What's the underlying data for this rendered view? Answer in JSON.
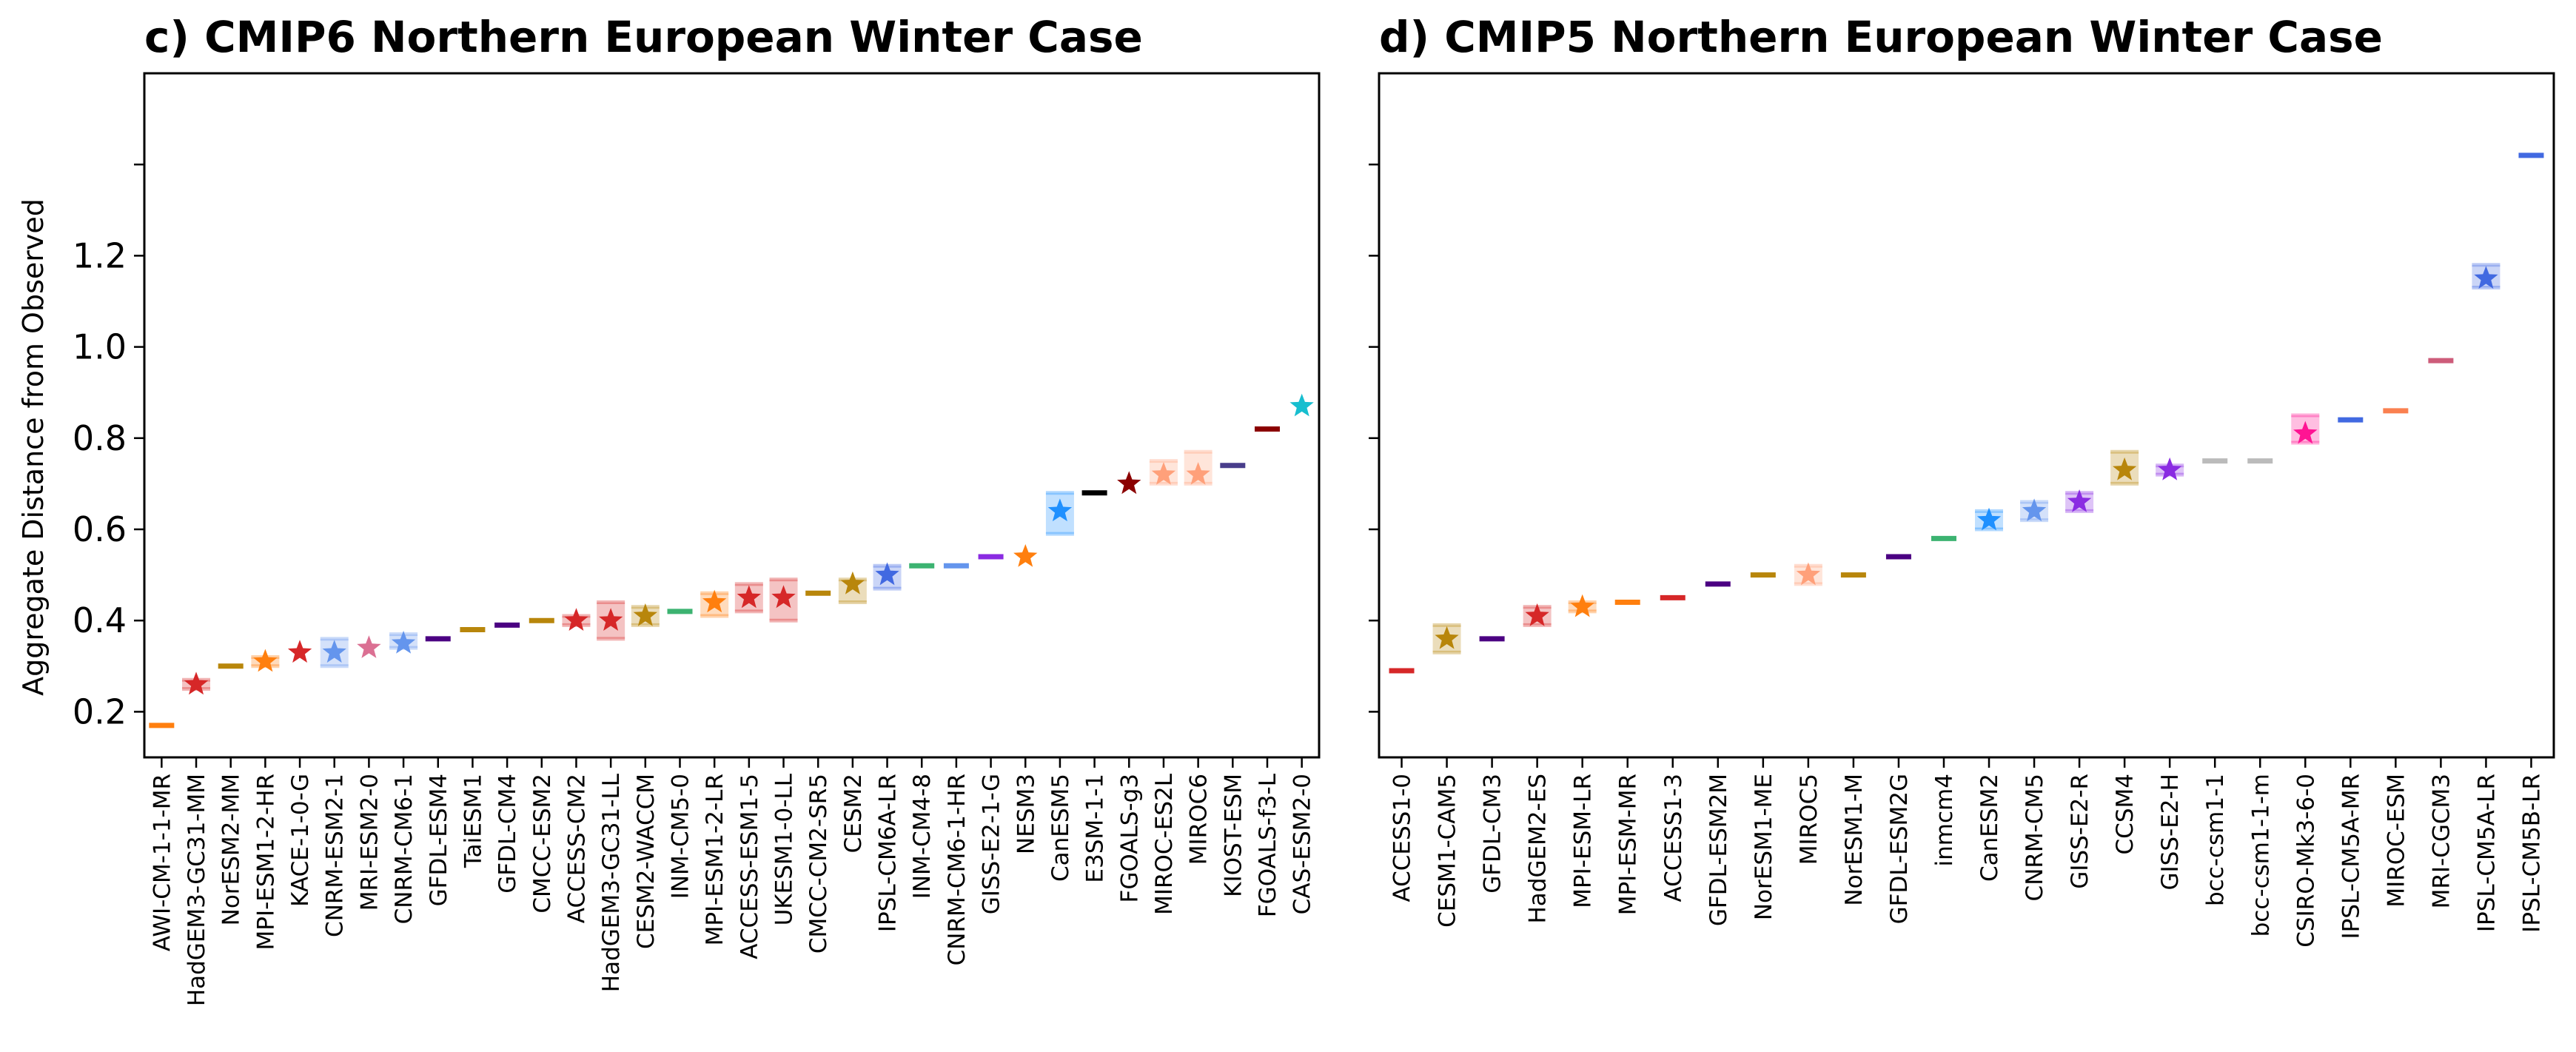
{
  "figure": {
    "ylabel": "Aggregate Distance from Observed",
    "yticks": [
      0.2,
      0.4,
      0.6,
      0.8,
      1.0,
      1.2
    ]
  },
  "chart_data": [
    {
      "type": "scatter",
      "title": "c) CMIP6 Northern European Winter Case",
      "ylabel": "Aggregate Distance from Observed",
      "ylim": [
        0.1,
        1.6
      ],
      "grid": false,
      "models": [
        {
          "name": "AWI-CM-1-1-MR",
          "value": 0.17,
          "color": "#ff7f0e",
          "star": false,
          "spread": []
        },
        {
          "name": "HadGEM3-GC31-MM",
          "value": 0.26,
          "color": "#d62728",
          "star": true,
          "spread": [
            0.25,
            0.27
          ]
        },
        {
          "name": "NorESM2-MM",
          "value": 0.3,
          "color": "#b8860b",
          "star": false,
          "spread": []
        },
        {
          "name": "MPI-ESM1-2-HR",
          "value": 0.31,
          "color": "#ff7f0e",
          "star": true,
          "spread": [
            0.3,
            0.32
          ]
        },
        {
          "name": "KACE-1-0-G",
          "value": 0.33,
          "color": "#d62728",
          "star": true,
          "spread": []
        },
        {
          "name": "CNRM-ESM2-1",
          "value": 0.33,
          "color": "#6495ed",
          "star": true,
          "spread": [
            0.3,
            0.36
          ]
        },
        {
          "name": "MRI-ESM2-0",
          "value": 0.34,
          "color": "#db7093",
          "star": true,
          "spread": []
        },
        {
          "name": "CNRM-CM6-1",
          "value": 0.35,
          "color": "#6495ed",
          "star": true,
          "spread": [
            0.34,
            0.37
          ]
        },
        {
          "name": "GFDL-ESM4",
          "value": 0.36,
          "color": "#4b0082",
          "star": false,
          "spread": []
        },
        {
          "name": "TaiESM1",
          "value": 0.38,
          "color": "#b8860b",
          "star": false,
          "spread": []
        },
        {
          "name": "GFDL-CM4",
          "value": 0.39,
          "color": "#4b0082",
          "star": false,
          "spread": []
        },
        {
          "name": "CMCC-ESM2",
          "value": 0.4,
          "color": "#b8860b",
          "star": false,
          "spread": []
        },
        {
          "name": "ACCESS-CM2",
          "value": 0.4,
          "color": "#d62728",
          "star": true,
          "spread": [
            0.39,
            0.41
          ]
        },
        {
          "name": "HadGEM3-GC31-LL",
          "value": 0.4,
          "color": "#d62728",
          "star": true,
          "spread": [
            0.36,
            0.44
          ]
        },
        {
          "name": "CESM2-WACCM",
          "value": 0.41,
          "color": "#b8860b",
          "star": true,
          "spread": [
            0.39,
            0.43
          ]
        },
        {
          "name": "INM-CM5-0",
          "value": 0.42,
          "color": "#3cb371",
          "star": false,
          "spread": []
        },
        {
          "name": "MPI-ESM1-2-LR",
          "value": 0.44,
          "color": "#ff7f0e",
          "star": true,
          "spread": [
            0.41,
            0.46
          ]
        },
        {
          "name": "ACCESS-ESM1-5",
          "value": 0.45,
          "color": "#d62728",
          "star": true,
          "spread": [
            0.42,
            0.48
          ]
        },
        {
          "name": "UKESM1-0-LL",
          "value": 0.45,
          "color": "#d62728",
          "star": true,
          "spread": [
            0.4,
            0.49
          ]
        },
        {
          "name": "CMCC-CM2-SR5",
          "value": 0.46,
          "color": "#b8860b",
          "star": false,
          "spread": []
        },
        {
          "name": "CESM2",
          "value": 0.48,
          "color": "#b8860b",
          "star": true,
          "spread": [
            0.44,
            0.49
          ]
        },
        {
          "name": "IPSL-CM6A-LR",
          "value": 0.5,
          "color": "#4169e1",
          "star": true,
          "spread": [
            0.47,
            0.52
          ]
        },
        {
          "name": "INM-CM4-8",
          "value": 0.52,
          "color": "#3cb371",
          "star": false,
          "spread": []
        },
        {
          "name": "CNRM-CM6-1-HR",
          "value": 0.52,
          "color": "#6495ed",
          "star": false,
          "spread": []
        },
        {
          "name": "GISS-E2-1-G",
          "value": 0.54,
          "color": "#8a2be2",
          "star": false,
          "spread": []
        },
        {
          "name": "NESM3",
          "value": 0.54,
          "color": "#ff7f0e",
          "star": true,
          "spread": []
        },
        {
          "name": "CanESM5",
          "value": 0.64,
          "color": "#1e90ff",
          "star": true,
          "spread": [
            0.59,
            0.68
          ]
        },
        {
          "name": "E3SM-1-1",
          "value": 0.68,
          "color": "#000000",
          "star": false,
          "spread": []
        },
        {
          "name": "FGOALS-g3",
          "value": 0.7,
          "color": "#8b0000",
          "star": true,
          "spread": []
        },
        {
          "name": "MIROC-ES2L",
          "value": 0.72,
          "color": "#ffa07a",
          "star": true,
          "spread": [
            0.7,
            0.75
          ]
        },
        {
          "name": "MIROC6",
          "value": 0.72,
          "color": "#ffa07a",
          "star": true,
          "spread": [
            0.7,
            0.77
          ]
        },
        {
          "name": "KIOST-ESM",
          "value": 0.74,
          "color": "#483d8b",
          "star": false,
          "spread": []
        },
        {
          "name": "FGOALS-f3-L",
          "value": 0.82,
          "color": "#8b0000",
          "star": false,
          "spread": []
        },
        {
          "name": "CAS-ESM2-0",
          "value": 0.87,
          "color": "#17becf",
          "star": true,
          "spread": []
        }
      ]
    },
    {
      "type": "scatter",
      "title": "d) CMIP5 Northern European Winter Case",
      "ylim": [
        0.1,
        1.6
      ],
      "grid": false,
      "models": [
        {
          "name": "ACCESS1-0",
          "value": 0.29,
          "color": "#d62728",
          "star": false,
          "spread": []
        },
        {
          "name": "CESM1-CAM5",
          "value": 0.36,
          "color": "#b8860b",
          "star": true,
          "spread": [
            0.33,
            0.39
          ]
        },
        {
          "name": "GFDL-CM3",
          "value": 0.36,
          "color": "#4b0082",
          "star": false,
          "spread": []
        },
        {
          "name": "HadGEM2-ES",
          "value": 0.41,
          "color": "#d62728",
          "star": true,
          "spread": [
            0.39,
            0.43
          ]
        },
        {
          "name": "MPI-ESM-LR",
          "value": 0.43,
          "color": "#ff7f0e",
          "star": true,
          "spread": [
            0.42,
            0.44
          ]
        },
        {
          "name": "MPI-ESM-MR",
          "value": 0.44,
          "color": "#ff7f0e",
          "star": false,
          "spread": []
        },
        {
          "name": "ACCESS1-3",
          "value": 0.45,
          "color": "#d62728",
          "star": false,
          "spread": []
        },
        {
          "name": "GFDL-ESM2M",
          "value": 0.48,
          "color": "#4b0082",
          "star": false,
          "spread": []
        },
        {
          "name": "NorESM1-ME",
          "value": 0.5,
          "color": "#b8860b",
          "star": false,
          "spread": []
        },
        {
          "name": "MIROC5",
          "value": 0.5,
          "color": "#ffa07a",
          "star": true,
          "spread": [
            0.48,
            0.52
          ]
        },
        {
          "name": "NorESM1-M",
          "value": 0.5,
          "color": "#b8860b",
          "star": false,
          "spread": []
        },
        {
          "name": "GFDL-ESM2G",
          "value": 0.54,
          "color": "#4b0082",
          "star": false,
          "spread": []
        },
        {
          "name": "inmcm4",
          "value": 0.58,
          "color": "#3cb371",
          "star": false,
          "spread": []
        },
        {
          "name": "CanESM2",
          "value": 0.62,
          "color": "#1e90ff",
          "star": true,
          "spread": [
            0.6,
            0.64
          ]
        },
        {
          "name": "CNRM-CM5",
          "value": 0.64,
          "color": "#6495ed",
          "star": true,
          "spread": [
            0.62,
            0.66
          ]
        },
        {
          "name": "GISS-E2-R",
          "value": 0.66,
          "color": "#8a2be2",
          "star": true,
          "spread": [
            0.64,
            0.68
          ]
        },
        {
          "name": "CCSM4",
          "value": 0.73,
          "color": "#b8860b",
          "star": true,
          "spread": [
            0.7,
            0.77
          ]
        },
        {
          "name": "GISS-E2-H",
          "value": 0.73,
          "color": "#8a2be2",
          "star": true,
          "spread": [
            0.72,
            0.74
          ]
        },
        {
          "name": "bcc-csm1-1",
          "value": 0.75,
          "color": "#bbbbbb",
          "star": false,
          "spread": []
        },
        {
          "name": "bcc-csm1-1-m",
          "value": 0.75,
          "color": "#bbbbbb",
          "star": false,
          "spread": []
        },
        {
          "name": "CSIRO-Mk3-6-0",
          "value": 0.81,
          "color": "#ff1493",
          "star": true,
          "spread": [
            0.79,
            0.85
          ]
        },
        {
          "name": "IPSL-CM5A-MR",
          "value": 0.84,
          "color": "#4169e1",
          "star": false,
          "spread": []
        },
        {
          "name": "MIROC-ESM",
          "value": 0.86,
          "color": "#fa8050",
          "star": false,
          "spread": []
        },
        {
          "name": "MRI-CGCM3",
          "value": 0.97,
          "color": "#cd5c7a",
          "star": false,
          "spread": []
        },
        {
          "name": "IPSL-CM5A-LR",
          "value": 1.15,
          "color": "#4169e1",
          "star": true,
          "spread": [
            1.13,
            1.18
          ]
        },
        {
          "name": "IPSL-CM5B-LR",
          "value": 1.42,
          "color": "#4169e1",
          "star": false,
          "spread": []
        }
      ]
    }
  ]
}
